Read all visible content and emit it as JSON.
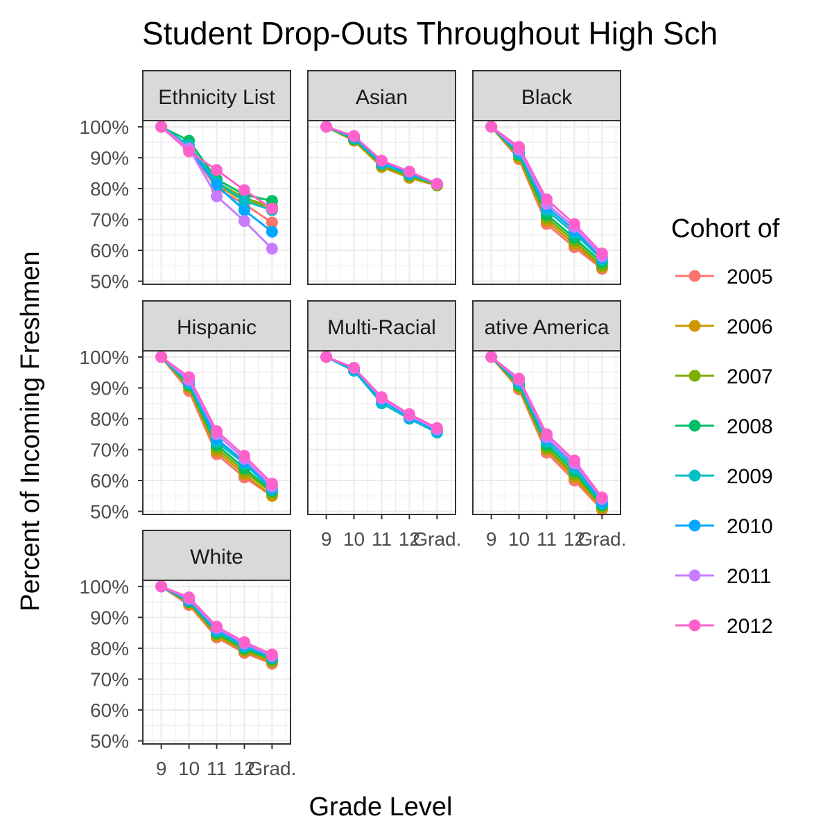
{
  "chart_data": {
    "type": "line",
    "title": "Student Drop-Outs Throughout High Sch",
    "xlabel": "Grade Level",
    "ylabel": "Percent of Incoming Freshmen",
    "x_categories": [
      "9",
      "10",
      "11",
      "12",
      "Grad."
    ],
    "y_ticks": [
      "100%",
      "90%",
      "80%",
      "70%",
      "60%",
      "50%"
    ],
    "ylim": [
      49,
      102
    ],
    "grid": true,
    "legend": {
      "title": "Cohort of",
      "placement": "right",
      "entries": [
        "2005",
        "2006",
        "2007",
        "2008",
        "2009",
        "2010",
        "2011",
        "2012"
      ]
    },
    "series_colors": {
      "2005": "#F8766D",
      "2006": "#CD9600",
      "2007": "#7CAE00",
      "2008": "#00BE67",
      "2009": "#00BFC4",
      "2010": "#00A9FF",
      "2011": "#C77CFF",
      "2012": "#FF61CC"
    },
    "panels": [
      {
        "label": "No Ethnicity List",
        "label_visible": "Ethnicity List",
        "series": [
          {
            "name": "2005",
            "values": [
              100,
              93,
              80,
              75,
              69
            ]
          },
          {
            "name": "2006",
            "values": [
              100,
              94,
              81,
              76,
              74
            ]
          },
          {
            "name": "2007",
            "values": [
              100,
              94,
              82,
              77,
              74
            ]
          },
          {
            "name": "2008",
            "values": [
              100,
              95.5,
              83,
              78,
              76
            ]
          },
          {
            "name": "2009",
            "values": [
              100,
              94,
              82,
              76,
              73
            ]
          },
          {
            "name": "2010",
            "values": [
              100,
              93,
              81,
              73,
              66
            ]
          },
          {
            "name": "2011",
            "values": [
              100,
              93,
              77.5,
              69.5,
              60.5
            ]
          },
          {
            "name": "2012",
            "values": [
              100,
              92,
              86,
              79.5,
              73.5
            ]
          }
        ]
      },
      {
        "label": "Asian",
        "series": [
          {
            "name": "2005",
            "values": [
              100,
              95.5,
              87,
              83.5,
              81
            ]
          },
          {
            "name": "2006",
            "values": [
              100,
              95.5,
              87,
              83.5,
              81
            ]
          },
          {
            "name": "2007",
            "values": [
              100,
              96,
              87.5,
              84,
              81
            ]
          },
          {
            "name": "2008",
            "values": [
              100,
              96,
              88,
              84.5,
              81.5
            ]
          },
          {
            "name": "2009",
            "values": [
              100,
              96.5,
              88,
              84.5,
              81.5
            ]
          },
          {
            "name": "2010",
            "values": [
              100,
              96.5,
              88.5,
              85,
              81.5
            ]
          },
          {
            "name": "2011",
            "values": [
              100,
              97,
              89,
              85.5,
              81.5
            ]
          },
          {
            "name": "2012",
            "values": [
              100,
              97,
              89,
              85.5,
              81.5
            ]
          }
        ]
      },
      {
        "label": "Black",
        "series": [
          {
            "name": "2005",
            "values": [
              100,
              89.5,
              68.5,
              61,
              54
            ]
          },
          {
            "name": "2006",
            "values": [
              100,
              90,
              69.5,
              62,
              54.5
            ]
          },
          {
            "name": "2007",
            "values": [
              100,
              90.5,
              70.5,
              63,
              55
            ]
          },
          {
            "name": "2008",
            "values": [
              100,
              91,
              71.5,
              64,
              56
            ]
          },
          {
            "name": "2009",
            "values": [
              100,
              91.5,
              73,
              65.5,
              57
            ]
          },
          {
            "name": "2010",
            "values": [
              100,
              92,
              74,
              66.5,
              57.5
            ]
          },
          {
            "name": "2011",
            "values": [
              100,
              92.5,
              75,
              67.5,
              58
            ]
          },
          {
            "name": "2012",
            "values": [
              100,
              93.5,
              76.5,
              68.5,
              59
            ]
          }
        ]
      },
      {
        "label": "Hispanic",
        "series": [
          {
            "name": "2005",
            "values": [
              100,
              89,
              68.5,
              61,
              55
            ]
          },
          {
            "name": "2006",
            "values": [
              100,
              90,
              69.5,
              62,
              55
            ]
          },
          {
            "name": "2007",
            "values": [
              100,
              90.5,
              70.5,
              63,
              56
            ]
          },
          {
            "name": "2008",
            "values": [
              100,
              91,
              71.5,
              64,
              56.5
            ]
          },
          {
            "name": "2009",
            "values": [
              100,
              91.5,
              72.5,
              65.5,
              57
            ]
          },
          {
            "name": "2010",
            "values": [
              100,
              92,
              73.5,
              66,
              57.5
            ]
          },
          {
            "name": "2011",
            "values": [
              100,
              92.5,
              75,
              67,
              58
            ]
          },
          {
            "name": "2012",
            "values": [
              100,
              93.5,
              76,
              68,
              59
            ]
          }
        ]
      },
      {
        "label": "Multi-Racial",
        "series": [
          {
            "name": "2009",
            "values": [
              100,
              95.5,
              85,
              80,
              75.5
            ]
          },
          {
            "name": "2010",
            "values": [
              100,
              96,
              86,
              80.5,
              76
            ]
          },
          {
            "name": "2011",
            "values": [
              100,
              96.5,
              86.5,
              81,
              76.5
            ]
          },
          {
            "name": "2012",
            "values": [
              100,
              96.5,
              87,
              81.5,
              77
            ]
          }
        ]
      },
      {
        "label": "Native American",
        "label_visible": "ative America",
        "series": [
          {
            "name": "2005",
            "values": [
              100,
              89.5,
              69,
              60,
              50.5
            ]
          },
          {
            "name": "2006",
            "values": [
              100,
              90,
              70,
              61,
              51
            ]
          },
          {
            "name": "2007",
            "values": [
              100,
              90.5,
              70.5,
              62,
              51.5
            ]
          },
          {
            "name": "2008",
            "values": [
              100,
              91,
              71.5,
              63,
              52
            ]
          },
          {
            "name": "2009",
            "values": [
              100,
              91.5,
              72.5,
              64,
              52.5
            ]
          },
          {
            "name": "2010",
            "values": [
              100,
              92,
              73.5,
              65,
              53
            ]
          },
          {
            "name": "2011",
            "values": [
              100,
              92.5,
              74,
              65.5,
              54
            ]
          },
          {
            "name": "2012",
            "values": [
              100,
              93,
              75,
              66.5,
              54.5
            ]
          }
        ]
      },
      {
        "label": "White",
        "series": [
          {
            "name": "2005",
            "values": [
              100,
              94,
              83.5,
              78.5,
              75
            ]
          },
          {
            "name": "2006",
            "values": [
              100,
              94.5,
              84,
              79,
              75.5
            ]
          },
          {
            "name": "2007",
            "values": [
              100,
              95,
              84.5,
              79.5,
              76
            ]
          },
          {
            "name": "2008",
            "values": [
              100,
              95,
              85,
              80,
              76.5
            ]
          },
          {
            "name": "2009",
            "values": [
              100,
              95.5,
              85.5,
              80.5,
              77
            ]
          },
          {
            "name": "2010",
            "values": [
              100,
              95.5,
              86,
              81,
              77
            ]
          },
          {
            "name": "2011",
            "values": [
              100,
              96,
              86.5,
              81.5,
              77.5
            ]
          },
          {
            "name": "2012",
            "values": [
              100,
              96.5,
              87,
              82,
              78
            ]
          }
        ]
      }
    ]
  }
}
